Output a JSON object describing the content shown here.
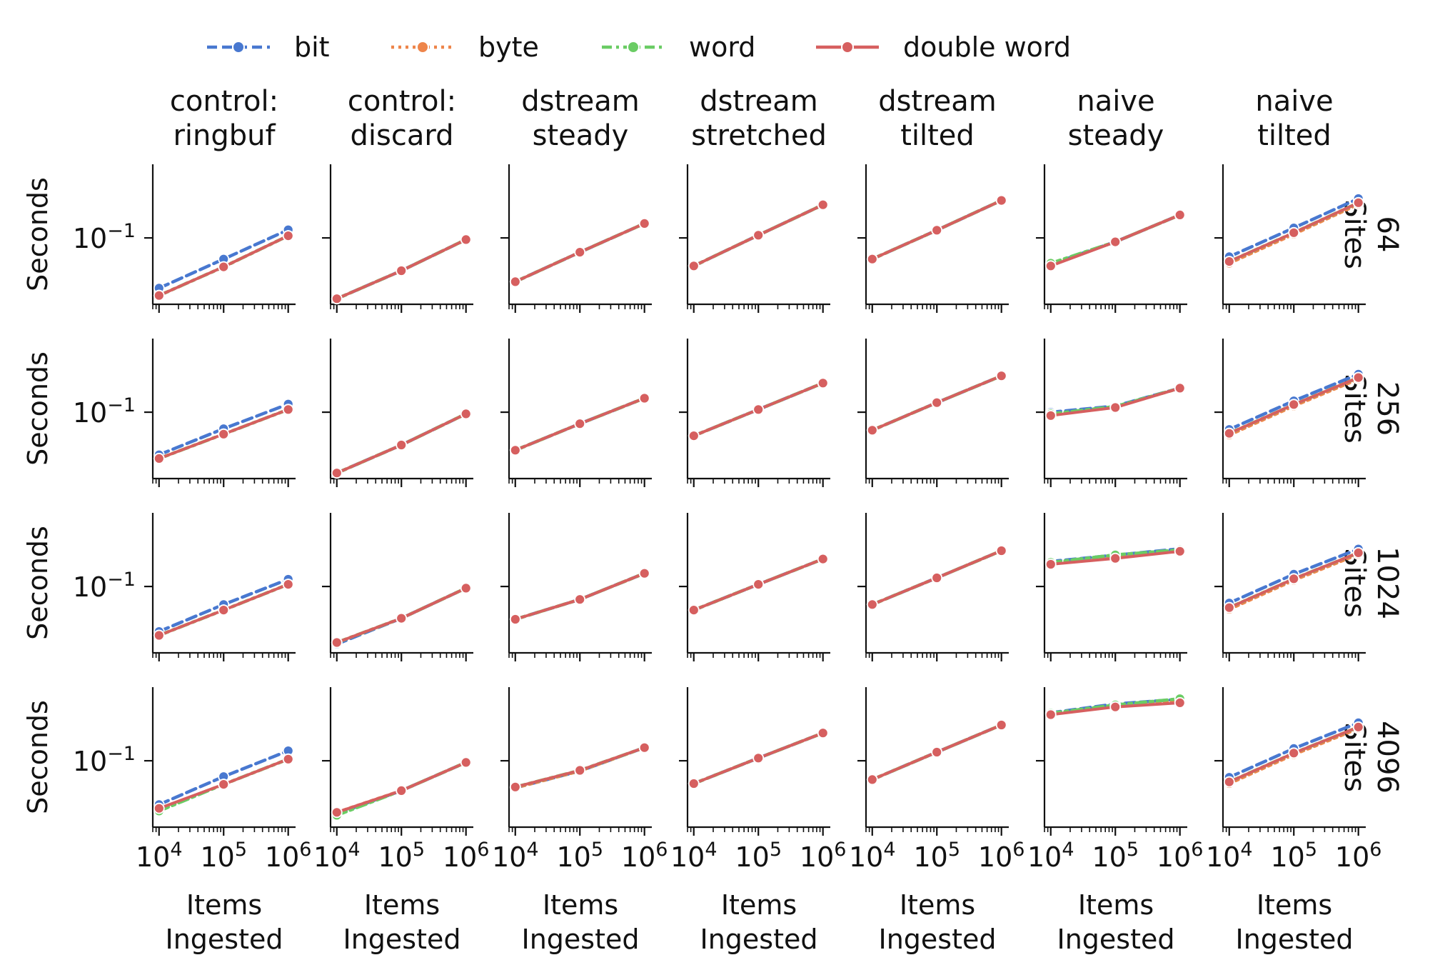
{
  "chart_data": {
    "type": "line",
    "layout": "facet grid, 4 rows x 7 columns",
    "legend": {
      "placement": "top-center",
      "entries": [
        {
          "label": "bit",
          "color": "#4878d0",
          "style": "dashed"
        },
        {
          "label": "byte",
          "color": "#ee854a",
          "style": "dotted"
        },
        {
          "label": "word",
          "color": "#6acc64",
          "style": "dashdot"
        },
        {
          "label": "double word",
          "color": "#d65f5f",
          "style": "solid"
        }
      ]
    },
    "column_titles": [
      [
        "control:",
        "ringbuf"
      ],
      [
        "control:",
        "discard"
      ],
      [
        "dstream",
        "steady"
      ],
      [
        "dstream",
        "stretched"
      ],
      [
        "dstream",
        "tilted"
      ],
      [
        "naive",
        "steady"
      ],
      [
        "naive",
        "tilted"
      ]
    ],
    "row_titles": [
      [
        "64",
        "Sites"
      ],
      [
        "256",
        "Sites"
      ],
      [
        "1024",
        "Sites"
      ],
      [
        "4096",
        "Sites"
      ]
    ],
    "xlabel": [
      "Items",
      "Ingested"
    ],
    "ylabel": "Seconds",
    "x_scale": "log",
    "y_scale": "log",
    "x": [
      10000,
      100000,
      1000000
    ],
    "xlim": [
      8000,
      1300000
    ],
    "ylim": [
      0.0298,
      0.383
    ],
    "x_tick_labels": [
      {
        "base": "10",
        "exp": "4"
      },
      {
        "base": "10",
        "exp": "5"
      },
      {
        "base": "10",
        "exp": "6"
      }
    ],
    "y_tick_labels": [
      {
        "base": "10",
        "exp": "−1",
        "value": 0.1
      }
    ],
    "panels": [
      [
        {
          "bit": [
            0.04,
            0.068,
            0.116
          ],
          "byte": [
            0.035,
            0.059,
            0.104
          ],
          "word": [
            0.035,
            0.059,
            0.104
          ],
          "double word": [
            0.035,
            0.059,
            0.104
          ]
        },
        {
          "bit": [
            0.033,
            0.055,
            0.097
          ],
          "byte": [
            0.033,
            0.055,
            0.097
          ],
          "word": [
            0.033,
            0.055,
            0.097
          ],
          "double word": [
            0.033,
            0.055,
            0.097
          ]
        },
        {
          "bit": [
            0.045,
            0.077,
            0.13
          ],
          "byte": [
            0.045,
            0.077,
            0.13
          ],
          "word": [
            0.045,
            0.077,
            0.13
          ],
          "double word": [
            0.045,
            0.077,
            0.13
          ]
        },
        {
          "bit": [
            0.06,
            0.105,
            0.183
          ],
          "byte": [
            0.06,
            0.105,
            0.183
          ],
          "word": [
            0.06,
            0.105,
            0.183
          ],
          "double word": [
            0.06,
            0.105,
            0.183
          ]
        },
        {
          "bit": [
            0.068,
            0.115,
            0.198
          ],
          "byte": [
            0.068,
            0.115,
            0.198
          ],
          "word": [
            0.068,
            0.115,
            0.198
          ],
          "double word": [
            0.068,
            0.115,
            0.198
          ]
        },
        {
          "bit": [
            0.062,
            0.093,
            0.152
          ],
          "byte": [
            0.062,
            0.093,
            0.152
          ],
          "word": [
            0.063,
            0.093,
            0.152
          ],
          "double word": [
            0.06,
            0.093,
            0.152
          ]
        },
        {
          "bit": [
            0.071,
            0.12,
            0.205
          ],
          "byte": [
            0.063,
            0.107,
            0.185
          ],
          "word": [
            0.065,
            0.11,
            0.19
          ],
          "double word": [
            0.065,
            0.11,
            0.19
          ]
        }
      ],
      [
        {
          "bit": [
            0.046,
            0.074,
            0.116
          ],
          "byte": [
            0.043,
            0.067,
            0.105
          ],
          "word": [
            0.043,
            0.067,
            0.105
          ],
          "double word": [
            0.043,
            0.067,
            0.105
          ]
        },
        {
          "bit": [
            0.033,
            0.055,
            0.097
          ],
          "byte": [
            0.033,
            0.055,
            0.097
          ],
          "word": [
            0.033,
            0.055,
            0.097
          ],
          "double word": [
            0.033,
            0.055,
            0.097
          ]
        },
        {
          "bit": [
            0.05,
            0.081,
            0.129
          ],
          "byte": [
            0.05,
            0.081,
            0.129
          ],
          "word": [
            0.05,
            0.081,
            0.129
          ],
          "double word": [
            0.05,
            0.081,
            0.129
          ]
        },
        {
          "bit": [
            0.065,
            0.105,
            0.17
          ],
          "byte": [
            0.065,
            0.105,
            0.17
          ],
          "word": [
            0.065,
            0.105,
            0.17
          ],
          "double word": [
            0.065,
            0.105,
            0.17
          ]
        },
        {
          "bit": [
            0.072,
            0.119,
            0.194
          ],
          "byte": [
            0.072,
            0.119,
            0.194
          ],
          "word": [
            0.072,
            0.119,
            0.194
          ],
          "double word": [
            0.072,
            0.119,
            0.194
          ]
        },
        {
          "bit": [
            0.1,
            0.112,
            0.155
          ],
          "byte": [
            0.095,
            0.11,
            0.155
          ],
          "word": [
            0.097,
            0.111,
            0.155
          ],
          "double word": [
            0.094,
            0.109,
            0.155
          ]
        },
        {
          "bit": [
            0.073,
            0.123,
            0.2
          ],
          "byte": [
            0.066,
            0.112,
            0.183
          ],
          "word": [
            0.068,
            0.115,
            0.188
          ],
          "double word": [
            0.068,
            0.115,
            0.188
          ]
        }
      ],
      [
        {
          "bit": [
            0.044,
            0.072,
            0.114
          ],
          "byte": [
            0.041,
            0.065,
            0.104
          ],
          "word": [
            0.041,
            0.065,
            0.104
          ],
          "double word": [
            0.041,
            0.065,
            0.104
          ]
        },
        {
          "bit": [
            0.035,
            0.056,
            0.097
          ],
          "byte": [
            0.036,
            0.056,
            0.097
          ],
          "word": [
            0.036,
            0.056,
            0.097
          ],
          "double word": [
            0.036,
            0.056,
            0.097
          ]
        },
        {
          "bit": [
            0.055,
            0.079,
            0.127
          ],
          "byte": [
            0.055,
            0.079,
            0.127
          ],
          "word": [
            0.055,
            0.079,
            0.127
          ],
          "double word": [
            0.055,
            0.079,
            0.127
          ]
        },
        {
          "bit": [
            0.065,
            0.104,
            0.165
          ],
          "byte": [
            0.065,
            0.104,
            0.165
          ],
          "word": [
            0.065,
            0.104,
            0.165
          ],
          "double word": [
            0.065,
            0.104,
            0.165
          ]
        },
        {
          "bit": [
            0.072,
            0.117,
            0.192
          ],
          "byte": [
            0.072,
            0.117,
            0.192
          ],
          "word": [
            0.072,
            0.117,
            0.192
          ],
          "double word": [
            0.072,
            0.117,
            0.192
          ]
        },
        {
          "bit": [
            0.158,
            0.177,
            0.199
          ],
          "byte": [
            0.153,
            0.173,
            0.19
          ],
          "word": [
            0.155,
            0.178,
            0.195
          ],
          "double word": [
            0.15,
            0.167,
            0.19
          ]
        },
        {
          "bit": [
            0.074,
            0.125,
            0.198
          ],
          "byte": [
            0.066,
            0.112,
            0.18
          ],
          "word": [
            0.068,
            0.115,
            0.185
          ],
          "double word": [
            0.068,
            0.115,
            0.185
          ]
        }
      ],
      [
        {
          "bit": [
            0.045,
            0.075,
            0.12
          ],
          "byte": [
            0.041,
            0.065,
            0.103
          ],
          "word": [
            0.04,
            0.065,
            0.103
          ],
          "double word": [
            0.042,
            0.065,
            0.103
          ]
        },
        {
          "bit": [
            0.038,
            0.058,
            0.097
          ],
          "byte": [
            0.039,
            0.058,
            0.097
          ],
          "word": [
            0.037,
            0.058,
            0.097
          ],
          "double word": [
            0.039,
            0.058,
            0.097
          ]
        },
        {
          "bit": [
            0.061,
            0.083,
            0.127
          ],
          "byte": [
            0.061,
            0.083,
            0.127
          ],
          "word": [
            0.062,
            0.084,
            0.127
          ],
          "double word": [
            0.062,
            0.084,
            0.127
          ]
        },
        {
          "bit": [
            0.066,
            0.105,
            0.166
          ],
          "byte": [
            0.066,
            0.105,
            0.166
          ],
          "word": [
            0.066,
            0.105,
            0.166
          ],
          "double word": [
            0.066,
            0.105,
            0.166
          ]
        },
        {
          "bit": [
            0.071,
            0.117,
            0.192
          ],
          "byte": [
            0.071,
            0.117,
            0.192
          ],
          "word": [
            0.071,
            0.117,
            0.192
          ],
          "double word": [
            0.071,
            0.117,
            0.192
          ]
        },
        {
          "bit": [
            0.24,
            0.282,
            0.307
          ],
          "byte": [
            0.236,
            0.272,
            0.3
          ],
          "word": [
            0.238,
            0.277,
            0.31
          ],
          "double word": [
            0.232,
            0.267,
            0.288
          ]
        },
        {
          "bit": [
            0.074,
            0.125,
            0.2
          ],
          "byte": [
            0.066,
            0.112,
            0.18
          ],
          "word": [
            0.068,
            0.115,
            0.185
          ],
          "double word": [
            0.068,
            0.115,
            0.185
          ]
        }
      ]
    ]
  }
}
